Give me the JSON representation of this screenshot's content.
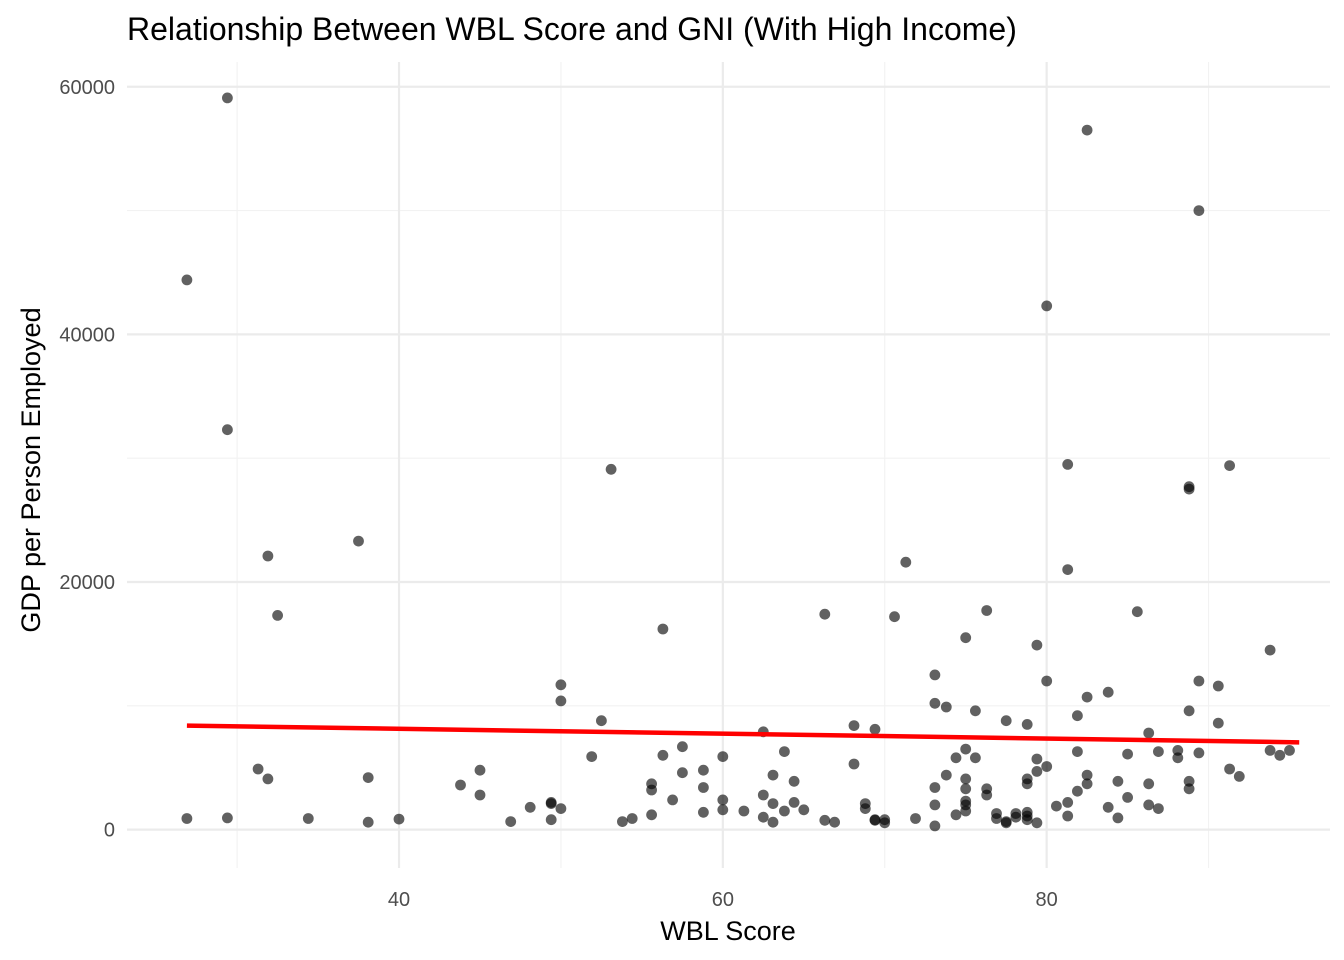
{
  "chart_data": {
    "type": "scatter",
    "title": "Relationship Between WBL Score and GNI (With High Income)",
    "xlabel": "WBL Score",
    "ylabel": "GDP per Person Employed",
    "xlim": [
      23.2,
      97.5
    ],
    "ylim": [
      -3100,
      62000
    ],
    "x_ticks": [
      40,
      60,
      80
    ],
    "x_tick_labels": [
      "40",
      "60",
      "80"
    ],
    "x_minor_ticks": [
      30,
      50,
      70,
      90
    ],
    "y_ticks": [
      0,
      20000,
      40000,
      60000
    ],
    "y_tick_labels": [
      "0",
      "20000",
      "40000",
      "60000"
    ],
    "y_minor_ticks": [
      10000,
      30000,
      50000
    ],
    "grid": true,
    "legend": "none",
    "point_color": "#000000",
    "trend_color": "#ff0000",
    "trend_line": {
      "x": [
        26.9,
        95.6
      ],
      "y": [
        8400,
        7050
      ]
    },
    "points": [
      [
        26.9,
        44400
      ],
      [
        26.9,
        900
      ],
      [
        29.4,
        59100
      ],
      [
        29.4,
        32300
      ],
      [
        29.4,
        950
      ],
      [
        31.3,
        4900
      ],
      [
        31.9,
        22100
      ],
      [
        31.9,
        4100
      ],
      [
        32.5,
        17300
      ],
      [
        34.4,
        900
      ],
      [
        37.5,
        23300
      ],
      [
        38.1,
        4200
      ],
      [
        38.1,
        600
      ],
      [
        40.0,
        850
      ],
      [
        43.8,
        3600
      ],
      [
        45.0,
        4800
      ],
      [
        45.0,
        2800
      ],
      [
        46.9,
        650
      ],
      [
        48.1,
        1800
      ],
      [
        49.4,
        2200
      ],
      [
        49.4,
        2100
      ],
      [
        49.4,
        800
      ],
      [
        50.0,
        11700
      ],
      [
        50.0,
        10400
      ],
      [
        50.0,
        1700
      ],
      [
        51.9,
        5900
      ],
      [
        52.5,
        8800
      ],
      [
        53.1,
        29100
      ],
      [
        53.8,
        650
      ],
      [
        54.4,
        900
      ],
      [
        55.6,
        3700
      ],
      [
        55.6,
        3200
      ],
      [
        55.6,
        1200
      ],
      [
        56.3,
        16200
      ],
      [
        56.3,
        6000
      ],
      [
        56.9,
        2400
      ],
      [
        57.5,
        6700
      ],
      [
        57.5,
        4600
      ],
      [
        58.8,
        4800
      ],
      [
        58.8,
        3400
      ],
      [
        58.8,
        1400
      ],
      [
        60.0,
        5900
      ],
      [
        60.0,
        2400
      ],
      [
        60.0,
        1600
      ],
      [
        61.3,
        1500
      ],
      [
        62.5,
        7900
      ],
      [
        62.5,
        2800
      ],
      [
        62.5,
        1000
      ],
      [
        63.1,
        4400
      ],
      [
        63.1,
        2100
      ],
      [
        63.1,
        600
      ],
      [
        63.8,
        6300
      ],
      [
        63.8,
        1500
      ],
      [
        64.4,
        3900
      ],
      [
        64.4,
        2200
      ],
      [
        65.0,
        1600
      ],
      [
        66.3,
        17400
      ],
      [
        66.3,
        750
      ],
      [
        66.9,
        600
      ],
      [
        68.1,
        8400
      ],
      [
        68.1,
        5300
      ],
      [
        68.8,
        2100
      ],
      [
        68.8,
        1700
      ],
      [
        69.4,
        8100
      ],
      [
        69.4,
        800
      ],
      [
        69.4,
        750
      ],
      [
        70.0,
        800
      ],
      [
        70.0,
        550
      ],
      [
        70.6,
        17200
      ],
      [
        71.3,
        21600
      ],
      [
        71.9,
        900
      ],
      [
        73.1,
        12500
      ],
      [
        73.1,
        10200
      ],
      [
        73.1,
        3400
      ],
      [
        73.1,
        2000
      ],
      [
        73.1,
        300
      ],
      [
        73.8,
        9900
      ],
      [
        73.8,
        4400
      ],
      [
        74.4,
        5800
      ],
      [
        74.4,
        1200
      ],
      [
        75.0,
        15500
      ],
      [
        75.0,
        6500
      ],
      [
        75.0,
        4100
      ],
      [
        75.0,
        3300
      ],
      [
        75.0,
        2300
      ],
      [
        75.0,
        2000
      ],
      [
        75.0,
        1500
      ],
      [
        75.6,
        9600
      ],
      [
        75.6,
        5800
      ],
      [
        76.3,
        17700
      ],
      [
        76.3,
        3300
      ],
      [
        76.3,
        2800
      ],
      [
        76.9,
        1300
      ],
      [
        76.9,
        900
      ],
      [
        77.5,
        8800
      ],
      [
        77.5,
        650
      ],
      [
        77.5,
        550
      ],
      [
        78.1,
        1300
      ],
      [
        78.1,
        1000
      ],
      [
        78.8,
        8500
      ],
      [
        78.8,
        4100
      ],
      [
        78.8,
        3700
      ],
      [
        78.8,
        1400
      ],
      [
        78.8,
        1100
      ],
      [
        78.8,
        800
      ],
      [
        79.4,
        14900
      ],
      [
        79.4,
        5700
      ],
      [
        79.4,
        4700
      ],
      [
        79.4,
        550
      ],
      [
        80.0,
        42300
      ],
      [
        80.0,
        12000
      ],
      [
        80.0,
        5100
      ],
      [
        80.6,
        1900
      ],
      [
        81.3,
        29500
      ],
      [
        81.3,
        21000
      ],
      [
        81.3,
        2200
      ],
      [
        81.3,
        1100
      ],
      [
        81.9,
        9200
      ],
      [
        81.9,
        6300
      ],
      [
        81.9,
        3100
      ],
      [
        82.5,
        56500
      ],
      [
        82.5,
        10700
      ],
      [
        82.5,
        4400
      ],
      [
        82.5,
        3700
      ],
      [
        83.8,
        11100
      ],
      [
        83.8,
        1800
      ],
      [
        84.4,
        3900
      ],
      [
        84.4,
        950
      ],
      [
        85.0,
        6100
      ],
      [
        85.0,
        2600
      ],
      [
        85.6,
        17600
      ],
      [
        86.3,
        7800
      ],
      [
        86.3,
        3700
      ],
      [
        86.3,
        2000
      ],
      [
        86.9,
        6300
      ],
      [
        86.9,
        1700
      ],
      [
        88.1,
        6400
      ],
      [
        88.1,
        5800
      ],
      [
        88.8,
        27700
      ],
      [
        88.8,
        27500
      ],
      [
        88.8,
        9600
      ],
      [
        88.8,
        3900
      ],
      [
        88.8,
        3300
      ],
      [
        89.4,
        50000
      ],
      [
        89.4,
        12000
      ],
      [
        89.4,
        6200
      ],
      [
        90.6,
        11600
      ],
      [
        90.6,
        8600
      ],
      [
        91.3,
        29400
      ],
      [
        91.3,
        4900
      ],
      [
        91.9,
        4300
      ],
      [
        93.8,
        14500
      ],
      [
        93.8,
        6400
      ],
      [
        94.4,
        6000
      ],
      [
        95.0,
        6400
      ]
    ]
  }
}
